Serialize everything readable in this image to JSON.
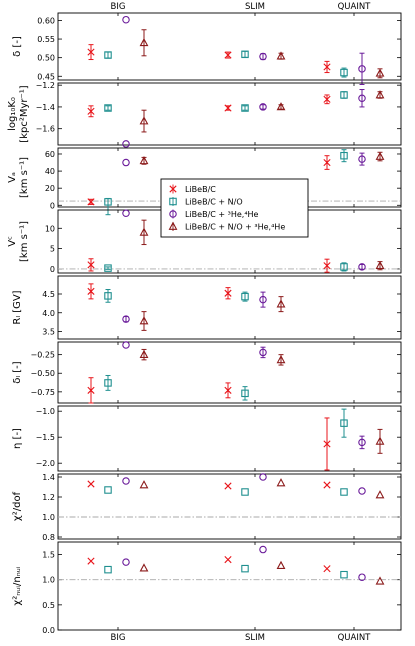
{
  "chart_data": {
    "type": "scatter",
    "categories": [
      "BIG",
      "SLIM",
      "QUAINT"
    ],
    "legend": {
      "placement": "center",
      "entries": [
        {
          "key": "c",
          "label": "LiBeB/C"
        },
        {
          "key": "no",
          "label": "LiBeB/C + N/O"
        },
        {
          "key": "he",
          "label": "LiBeB/C + ³He,⁴He"
        },
        {
          "key": "all",
          "label": "LiBeB/C + N/O + ³He,⁴He"
        }
      ]
    },
    "series_style": {
      "c": {
        "color": "#e8151b",
        "marker": "x"
      },
      "no": {
        "color": "#1f8f8f",
        "marker": "square"
      },
      "he": {
        "color": "#6a1b9a",
        "marker": "circle"
      },
      "all": {
        "color": "#8b1a1a",
        "marker": "triangle"
      }
    },
    "panels": [
      {
        "ylabel": [
          "δ [-]"
        ],
        "ylim": [
          0.44,
          0.62
        ],
        "yticks": [
          0.45,
          0.5,
          0.55,
          0.6
        ],
        "ytick_labels": [
          "0.45",
          "0.50",
          "0.55",
          "0.60"
        ],
        "hline": null,
        "points": {
          "c": [
            [
              0.515,
              0.02,
              0.02
            ],
            [
              0.507,
              0.008,
              0.008
            ],
            [
              0.475,
              0.015,
              0.015
            ]
          ],
          "no": [
            [
              0.507,
              0.008,
              0.008
            ],
            [
              0.509,
              0.008,
              0.008
            ],
            [
              0.46,
              0.012,
              0.012
            ]
          ],
          "he": [
            [
              0.602,
              0.0,
              0.0
            ],
            [
              0.503,
              0.008,
              0.008
            ],
            [
              0.47,
              0.042,
              0.042
            ]
          ],
          "all": [
            [
              0.54,
              0.035,
              0.035
            ],
            [
              0.504,
              0.008,
              0.008
            ],
            [
              0.458,
              0.012,
              0.012
            ]
          ]
        }
      },
      {
        "ylabel": [
          "log₁₀K₀",
          "[kpc²Myr⁻¹]"
        ],
        "ylim": [
          -1.75,
          -1.18
        ],
        "yticks": [
          -1.2,
          -1.4,
          -1.6
        ],
        "ytick_labels": [
          "−1.2",
          "−1.4",
          "−1.6"
        ],
        "hline": null,
        "points": {
          "c": [
            [
              -1.44,
              0.05,
              0.05
            ],
            [
              -1.41,
              0.02,
              0.02
            ],
            [
              -1.33,
              0.04,
              0.04
            ]
          ],
          "no": [
            [
              -1.41,
              0.02,
              0.02
            ],
            [
              -1.41,
              0.02,
              0.02
            ],
            [
              -1.29,
              0.03,
              0.03
            ]
          ],
          "he": [
            [
              -1.74,
              0.0,
              0.0
            ],
            [
              -1.4,
              0.02,
              0.02
            ],
            [
              -1.32,
              0.08,
              0.08
            ]
          ],
          "all": [
            [
              -1.53,
              0.1,
              0.1
            ],
            [
              -1.4,
              0.02,
              0.02
            ],
            [
              -1.29,
              0.03,
              0.03
            ]
          ]
        }
      },
      {
        "ylabel": [
          "Vₐ",
          "[km s⁻¹]"
        ],
        "ylim": [
          -2,
          67
        ],
        "yticks": [
          0,
          20,
          40,
          60
        ],
        "ytick_labels": [
          "0",
          "20",
          "40",
          "60"
        ],
        "hline": 5,
        "points": {
          "c": [
            [
              4,
              3,
              3
            ],
            [
              null,
              0,
              0
            ],
            [
              50,
              8,
              8
            ]
          ],
          "no": [
            [
              4,
              15,
              4
            ],
            [
              null,
              0,
              0
            ],
            [
              58,
              7,
              7
            ]
          ],
          "he": [
            [
              50,
              0,
              0
            ],
            [
              null,
              0,
              0
            ],
            [
              54,
              7,
              7
            ]
          ],
          "all": [
            [
              52,
              4,
              4
            ],
            [
              null,
              0,
              0
            ],
            [
              57,
              5,
              5
            ]
          ]
        }
      },
      {
        "ylabel": [
          "Vᶜ",
          "[km s⁻¹]"
        ],
        "ylim": [
          -1,
          14.5
        ],
        "yticks": [
          0,
          5,
          10
        ],
        "ytick_labels": [
          "0",
          "5",
          "10"
        ],
        "hline": 0,
        "points": {
          "c": [
            [
              1,
              1.5,
              1.5
            ],
            [
              null,
              0,
              0
            ],
            [
              0.8,
              1.6,
              1.6
            ]
          ],
          "no": [
            [
              0.2,
              0.3,
              0.3
            ],
            [
              null,
              0,
              0
            ],
            [
              0.5,
              1.0,
              1.0
            ]
          ],
          "he": [
            [
              13.7,
              0,
              0
            ],
            [
              null,
              0,
              0
            ],
            [
              0.5,
              0.6,
              0.6
            ]
          ],
          "all": [
            [
              9,
              3,
              3
            ],
            [
              null,
              0,
              0
            ],
            [
              0.8,
              1.0,
              1.0
            ]
          ]
        }
      },
      {
        "ylabel": [
          "Rₗ [GV]"
        ],
        "ylim": [
          3.3,
          4.98
        ],
        "yticks": [
          3.5,
          4.0,
          4.5
        ],
        "ytick_labels": [
          "3.5",
          "4.0",
          "4.5"
        ],
        "hline": null,
        "points": {
          "c": [
            [
              4.57,
              0.2,
              0.2
            ],
            [
              4.52,
              0.15,
              0.15
            ],
            [
              null,
              0,
              0
            ]
          ],
          "no": [
            [
              4.45,
              0.17,
              0.17
            ],
            [
              4.43,
              0.12,
              0.12
            ],
            [
              null,
              0,
              0
            ]
          ],
          "he": [
            [
              3.83,
              0.07,
              0.07
            ],
            [
              4.35,
              0.2,
              0.2
            ],
            [
              null,
              0,
              0
            ]
          ],
          "all": [
            [
              3.78,
              0.25,
              0.25
            ],
            [
              4.23,
              0.2,
              0.2
            ],
            [
              null,
              0,
              0
            ]
          ]
        }
      },
      {
        "ylabel": [
          "δₗ [-]"
        ],
        "ylim": [
          -0.9,
          -0.08
        ],
        "yticks": [
          -0.25,
          -0.5,
          -0.75
        ],
        "ytick_labels": [
          "−0.25",
          "−0.50",
          "−0.75"
        ],
        "hline": null,
        "points": {
          "c": [
            [
              -0.73,
              0.17,
              0.17
            ],
            [
              -0.73,
              0.1,
              0.1
            ],
            [
              null,
              0,
              0
            ]
          ],
          "no": [
            [
              -0.63,
              0.1,
              0.1
            ],
            [
              -0.77,
              0.09,
              0.09
            ],
            [
              null,
              0,
              0
            ]
          ],
          "he": [
            [
              -0.12,
              0,
              0
            ],
            [
              -0.22,
              0.07,
              0.07
            ],
            [
              null,
              0,
              0
            ]
          ],
          "all": [
            [
              -0.25,
              0.07,
              0.07
            ],
            [
              -0.32,
              0.07,
              0.07
            ],
            [
              null,
              0,
              0
            ]
          ]
        }
      },
      {
        "ylabel": [
          "η [-]"
        ],
        "ylim": [
          -2.15,
          -0.9
        ],
        "yticks": [
          -1.0,
          -1.5,
          -2.0
        ],
        "ytick_labels": [
          "−1.0",
          "−1.5",
          "−2.0"
        ],
        "hline": null,
        "points": {
          "c": [
            [
              null,
              0,
              0
            ],
            [
              null,
              0,
              0
            ],
            [
              -1.63,
              0.5,
              0.5
            ]
          ],
          "no": [
            [
              null,
              0,
              0
            ],
            [
              null,
              0,
              0
            ],
            [
              -1.23,
              0.27,
              0.27
            ]
          ],
          "he": [
            [
              null,
              0,
              0
            ],
            [
              null,
              0,
              0
            ],
            [
              -1.6,
              0.12,
              0.12
            ]
          ],
          "all": [
            [
              null,
              0,
              0
            ],
            [
              null,
              0,
              0
            ],
            [
              -1.58,
              0.23,
              0.23
            ]
          ]
        }
      },
      {
        "ylabel": [
          "χ²/dof"
        ],
        "ylim": [
          0.78,
          1.43
        ],
        "yticks": [
          0.8,
          1.0,
          1.2,
          1.4
        ],
        "ytick_labels": [
          "0.8",
          "1.0",
          "1.2",
          "1.4"
        ],
        "hline": 1.0,
        "points": {
          "c": [
            [
              1.33,
              0,
              0
            ],
            [
              1.31,
              0,
              0
            ],
            [
              1.32,
              0,
              0
            ]
          ],
          "no": [
            [
              1.27,
              0,
              0
            ],
            [
              1.25,
              0,
              0
            ],
            [
              1.25,
              0,
              0
            ]
          ],
          "he": [
            [
              1.36,
              0,
              0
            ],
            [
              1.4,
              0,
              0
            ],
            [
              1.26,
              0,
              0
            ]
          ],
          "all": [
            [
              1.32,
              0,
              0
            ],
            [
              1.34,
              0,
              0
            ],
            [
              1.22,
              0,
              0
            ]
          ]
        }
      },
      {
        "ylabel": [
          "χ²ₙᵤᵢ/nₙᵤᵢ"
        ],
        "ylim": [
          0,
          1.75
        ],
        "yticks": [
          0.0,
          0.5,
          1.0,
          1.5
        ],
        "ytick_labels": [
          "0.0",
          "0.5",
          "1.0",
          "1.5"
        ],
        "hline": 1.0,
        "points": {
          "c": [
            [
              1.37,
              0,
              0
            ],
            [
              1.4,
              0,
              0
            ],
            [
              1.22,
              0,
              0
            ]
          ],
          "no": [
            [
              1.2,
              0,
              0
            ],
            [
              1.22,
              0,
              0
            ],
            [
              1.1,
              0,
              0
            ]
          ],
          "he": [
            [
              1.35,
              0,
              0
            ],
            [
              1.6,
              0,
              0
            ],
            [
              1.05,
              0,
              0
            ]
          ],
          "all": [
            [
              1.23,
              0,
              0
            ],
            [
              1.28,
              0,
              0
            ],
            [
              0.97,
              0,
              0
            ]
          ]
        }
      }
    ]
  }
}
